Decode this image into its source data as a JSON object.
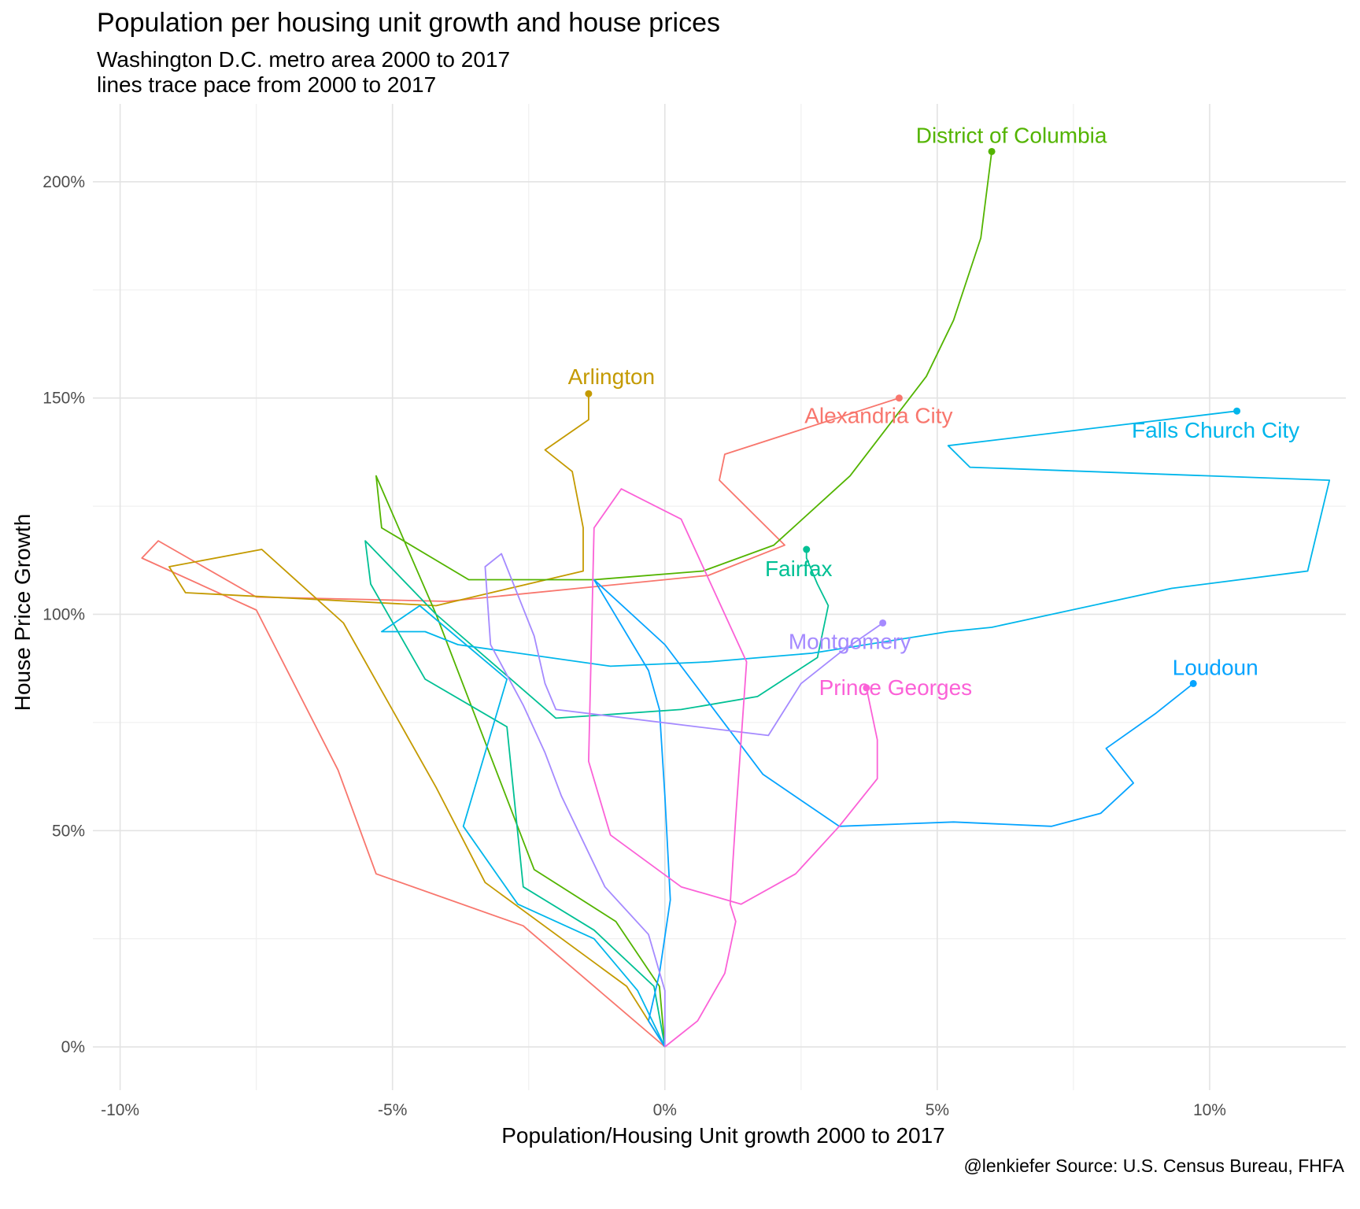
{
  "chart_data": {
    "type": "line",
    "title": "Population per housing unit growth and house prices",
    "subtitle": [
      "Washington D.C. metro area 2000 to 2017",
      "lines trace pace from 2000 to 2017"
    ],
    "xlabel": "Population/Housing Unit growth 2000 to 2017",
    "ylabel": "House Price Growth",
    "caption": "@lenkiefer Source: U.S. Census Bureau, FHFA",
    "xlim": [
      -10.5,
      12.5
    ],
    "ylim": [
      -10,
      218
    ],
    "x_ticks": [
      -10,
      -5,
      0,
      5,
      10
    ],
    "x_tick_labels": [
      "-10%",
      "-5%",
      "0%",
      "5%",
      "10%"
    ],
    "y_ticks": [
      0,
      50,
      100,
      150,
      200
    ],
    "y_tick_labels": [
      "0%",
      "50%",
      "100%",
      "150%",
      "200%"
    ],
    "grid": true,
    "legend": "none (series labeled at line ends)",
    "series": [
      {
        "name": "Alexandria City",
        "color": "#F8766D",
        "x": [
          0.0,
          -2.6,
          -5.3,
          -6.0,
          -7.5,
          -9.6,
          -9.3,
          -7.5,
          -4.0,
          0.8,
          2.2,
          1.0,
          1.1,
          4.3
        ],
        "y": [
          0,
          28,
          40,
          64,
          101,
          113,
          117,
          104,
          103,
          109,
          116,
          131,
          137,
          150
        ]
      },
      {
        "name": "Arlington",
        "color": "#C49A00",
        "x": [
          0.0,
          -0.7,
          -3.3,
          -4.2,
          -5.9,
          -7.4,
          -9.1,
          -8.8,
          -4.2,
          -1.5,
          -1.5,
          -1.7,
          -2.2,
          -1.4,
          -1.4
        ],
        "y": [
          0,
          14,
          38,
          60,
          98,
          115,
          111,
          105,
          102,
          110,
          120,
          133,
          138,
          145,
          151
        ]
      },
      {
        "name": "District of Columbia",
        "color": "#53B400",
        "x": [
          0.0,
          -0.1,
          -0.9,
          -2.4,
          -4.2,
          -5.3,
          -5.2,
          -3.6,
          -1.3,
          0.7,
          2.0,
          3.4,
          4.8,
          5.3,
          5.8,
          6.0
        ],
        "y": [
          0,
          14,
          29,
          41,
          100,
          132,
          120,
          108,
          108,
          110,
          116,
          132,
          155,
          168,
          187,
          207
        ]
      },
      {
        "name": "Fairfax",
        "color": "#00C094",
        "x": [
          0.0,
          -0.2,
          -1.3,
          -2.6,
          -2.9,
          -4.4,
          -5.4,
          -5.5,
          -4.2,
          -2.0,
          0.3,
          1.7,
          2.8,
          3.0,
          2.8,
          2.6,
          2.6
        ],
        "y": [
          0,
          14,
          27,
          37,
          74,
          85,
          107,
          117,
          100,
          76,
          78,
          81,
          90,
          102,
          107,
          113,
          115
        ]
      },
      {
        "name": "Falls Church City",
        "color": "#00B6EB",
        "x": [
          0.0,
          -0.5,
          -1.3,
          -2.7,
          -3.7,
          -2.9,
          -4.5,
          -5.2,
          -4.4,
          -3.8,
          -1.0,
          0.8,
          2.7,
          5.2,
          6.0,
          9.3,
          11.8,
          12.2,
          5.6,
          5.2,
          10.5
        ],
        "y": [
          0,
          13,
          25,
          33,
          51,
          85,
          102,
          96,
          96,
          93,
          88,
          89,
          91,
          96,
          97,
          106,
          110,
          131,
          134,
          139,
          147
        ]
      },
      {
        "name": "Loudoun",
        "color": "#06A4FF",
        "x": [
          0.0,
          -0.3,
          -0.1,
          0.1,
          0.0,
          -0.1,
          -0.3,
          -1.3,
          0.0,
          1.8,
          3.2,
          5.3,
          7.1,
          8.0,
          8.6,
          8.1,
          9.0,
          9.7
        ],
        "y": [
          0,
          6,
          17,
          34,
          58,
          78,
          87,
          108,
          93,
          63,
          51,
          52,
          51,
          54,
          61,
          69,
          77,
          84
        ]
      },
      {
        "name": "Montgomery",
        "color": "#A58AFF",
        "x": [
          0.0,
          0.0,
          -0.3,
          -1.1,
          -1.9,
          -2.2,
          -2.6,
          -3.2,
          -3.3,
          -3.0,
          -2.4,
          -2.2,
          -2.0,
          1.9,
          2.5,
          3.2,
          4.0
        ],
        "y": [
          0,
          13,
          26,
          37,
          58,
          68,
          79,
          93,
          111,
          114,
          95,
          84,
          78,
          72,
          84,
          91,
          98
        ]
      },
      {
        "name": "Prince Georges",
        "color": "#FB61D7",
        "x": [
          0.0,
          0.6,
          1.1,
          1.3,
          1.2,
          1.3,
          1.5,
          0.3,
          -0.8,
          -1.3,
          -1.4,
          -1.0,
          0.3,
          1.4,
          2.4,
          3.2,
          3.9,
          3.9,
          3.7
        ],
        "y": [
          0,
          6,
          17,
          29,
          33,
          53,
          89,
          122,
          129,
          120,
          66,
          49,
          37,
          33,
          40,
          51,
          62,
          71,
          83
        ]
      }
    ],
    "series_labels": [
      "Alexandria City",
      "Arlington",
      "District of Columbia",
      "Fairfax",
      "Falls Church City",
      "Loudoun",
      "Montgomery",
      "Prince Georges"
    ]
  }
}
